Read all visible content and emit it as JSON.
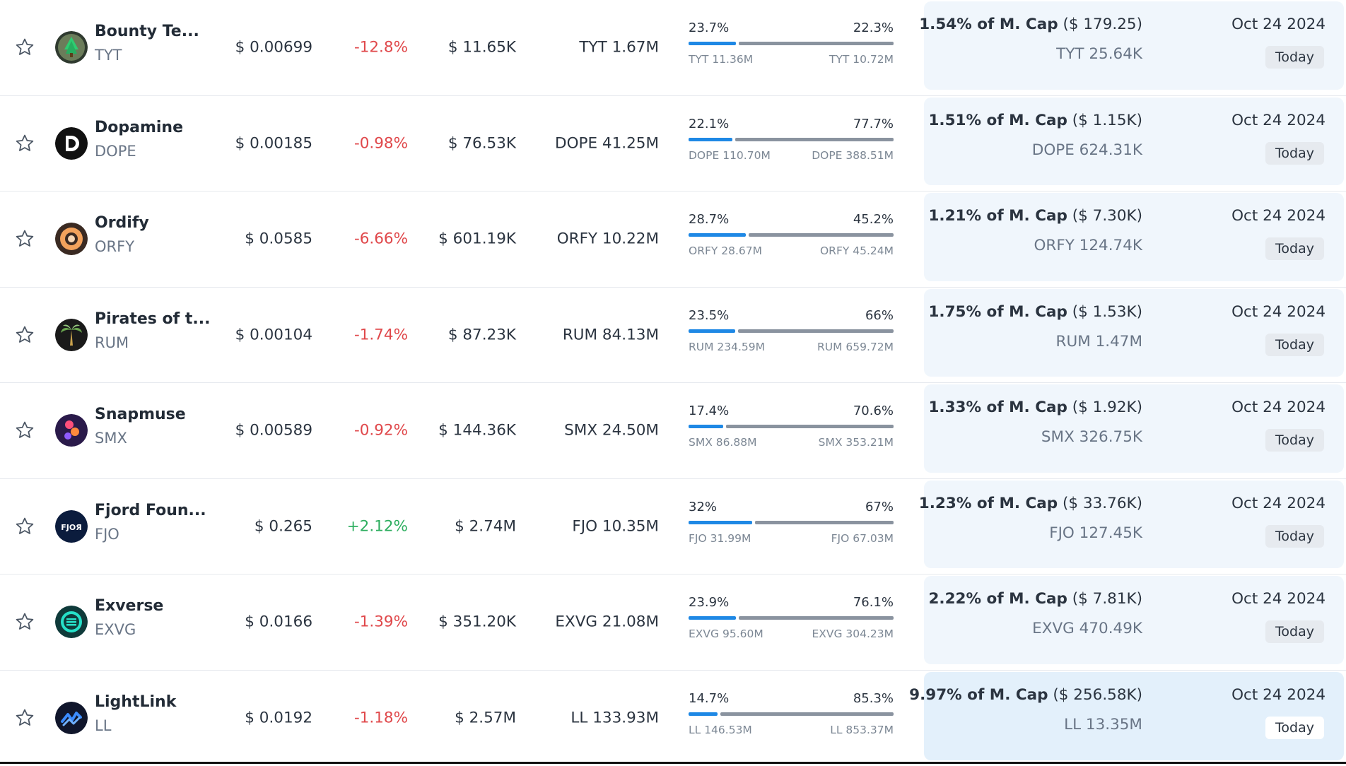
{
  "rows": [
    {
      "name": "Bounty Te...",
      "symbol": "TYT",
      "price": "$ 0.00699",
      "change": "-12.8%",
      "change_dir": "neg",
      "volume": "$ 11.65K",
      "supply": "TYT 1.67M",
      "left_pct": "23.7%",
      "right_pct": "22.3%",
      "left_amt": "TYT 11.36M",
      "right_amt": "TYT 10.72M",
      "mcap_pct": "1.54% of M. Cap",
      "mcap_usd": "($ 179.25)",
      "unlock": "TYT 25.64K",
      "date": "Oct 24 2024",
      "today": "Today",
      "icon": "bounty-tree-logo",
      "highlight": false
    },
    {
      "name": "Dopamine",
      "symbol": "DOPE",
      "price": "$ 0.00185",
      "change": "-0.98%",
      "change_dir": "neg",
      "volume": "$ 76.53K",
      "supply": "DOPE 41.25M",
      "left_pct": "22.1%",
      "right_pct": "77.7%",
      "left_amt": "DOPE 110.70M",
      "right_amt": "DOPE 388.51M",
      "mcap_pct": "1.51% of M. Cap",
      "mcap_usd": "($ 1.15K)",
      "unlock": "DOPE 624.31K",
      "date": "Oct 24 2024",
      "today": "Today",
      "icon": "dopamine-logo",
      "highlight": false
    },
    {
      "name": "Ordify",
      "symbol": "ORFY",
      "price": "$ 0.0585",
      "change": "-6.66%",
      "change_dir": "neg",
      "volume": "$ 601.19K",
      "supply": "ORFY 10.22M",
      "left_pct": "28.7%",
      "right_pct": "45.2%",
      "left_amt": "ORFY 28.67M",
      "right_amt": "ORFY 45.24M",
      "mcap_pct": "1.21% of M. Cap",
      "mcap_usd": "($ 7.30K)",
      "unlock": "ORFY 124.74K",
      "date": "Oct 24 2024",
      "today": "Today",
      "icon": "ordify-logo",
      "highlight": false
    },
    {
      "name": "Pirates of t...",
      "symbol": "RUM",
      "price": "$ 0.00104",
      "change": "-1.74%",
      "change_dir": "neg",
      "volume": "$ 87.23K",
      "supply": "RUM 84.13M",
      "left_pct": "23.5%",
      "right_pct": "66%",
      "left_amt": "RUM 234.59M",
      "right_amt": "RUM 659.72M",
      "mcap_pct": "1.75% of M. Cap",
      "mcap_usd": "($ 1.53K)",
      "unlock": "RUM 1.47M",
      "date": "Oct 24 2024",
      "today": "Today",
      "icon": "palm-tree-logo",
      "highlight": false
    },
    {
      "name": "Snapmuse",
      "symbol": "SMX",
      "price": "$ 0.00589",
      "change": "-0.92%",
      "change_dir": "neg",
      "volume": "$ 144.36K",
      "supply": "SMX 24.50M",
      "left_pct": "17.4%",
      "right_pct": "70.6%",
      "left_amt": "SMX 86.88M",
      "right_amt": "SMX 353.21M",
      "mcap_pct": "1.33% of M. Cap",
      "mcap_usd": "($ 1.92K)",
      "unlock": "SMX 326.75K",
      "date": "Oct 24 2024",
      "today": "Today",
      "icon": "snapmuse-logo",
      "highlight": false
    },
    {
      "name": "Fjord Foun...",
      "symbol": "FJO",
      "price": "$ 0.265",
      "change": "+2.12%",
      "change_dir": "pos",
      "volume": "$ 2.74M",
      "supply": "FJO 10.35M",
      "left_pct": "32%",
      "right_pct": "67%",
      "left_amt": "FJO 31.99M",
      "right_amt": "FJO 67.03M",
      "mcap_pct": "1.23% of M. Cap",
      "mcap_usd": "($ 33.76K)",
      "unlock": "FJO 127.45K",
      "date": "Oct 24 2024",
      "today": "Today",
      "icon": "fjord-logo",
      "highlight": false
    },
    {
      "name": "Exverse",
      "symbol": "EXVG",
      "price": "$ 0.0166",
      "change": "-1.39%",
      "change_dir": "neg",
      "volume": "$ 351.20K",
      "supply": "EXVG 21.08M",
      "left_pct": "23.9%",
      "right_pct": "76.1%",
      "left_amt": "EXVG 95.60M",
      "right_amt": "EXVG 304.23M",
      "mcap_pct": "2.22% of M. Cap",
      "mcap_usd": "($ 7.81K)",
      "unlock": "EXVG 470.49K",
      "date": "Oct 24 2024",
      "today": "Today",
      "icon": "exverse-logo",
      "highlight": false
    },
    {
      "name": "LightLink",
      "symbol": "LL",
      "price": "$ 0.0192",
      "change": "-1.18%",
      "change_dir": "neg",
      "volume": "$ 2.57M",
      "supply": "LL 133.93M",
      "left_pct": "14.7%",
      "right_pct": "85.3%",
      "left_amt": "LL 146.53M",
      "right_amt": "LL 853.37M",
      "mcap_pct": "9.97% of M. Cap",
      "mcap_usd": "($ 256.58K)",
      "unlock": "LL 13.35M",
      "date": "Oct 24 2024",
      "today": "Today",
      "icon": "lightlink-logo",
      "highlight": true
    }
  ],
  "colors": {
    "negative": "#e0484b",
    "positive": "#2dae5f",
    "bar_blue": "#1e88e5",
    "bar_gray": "#8a939f",
    "panel": "#f0f6fc"
  }
}
